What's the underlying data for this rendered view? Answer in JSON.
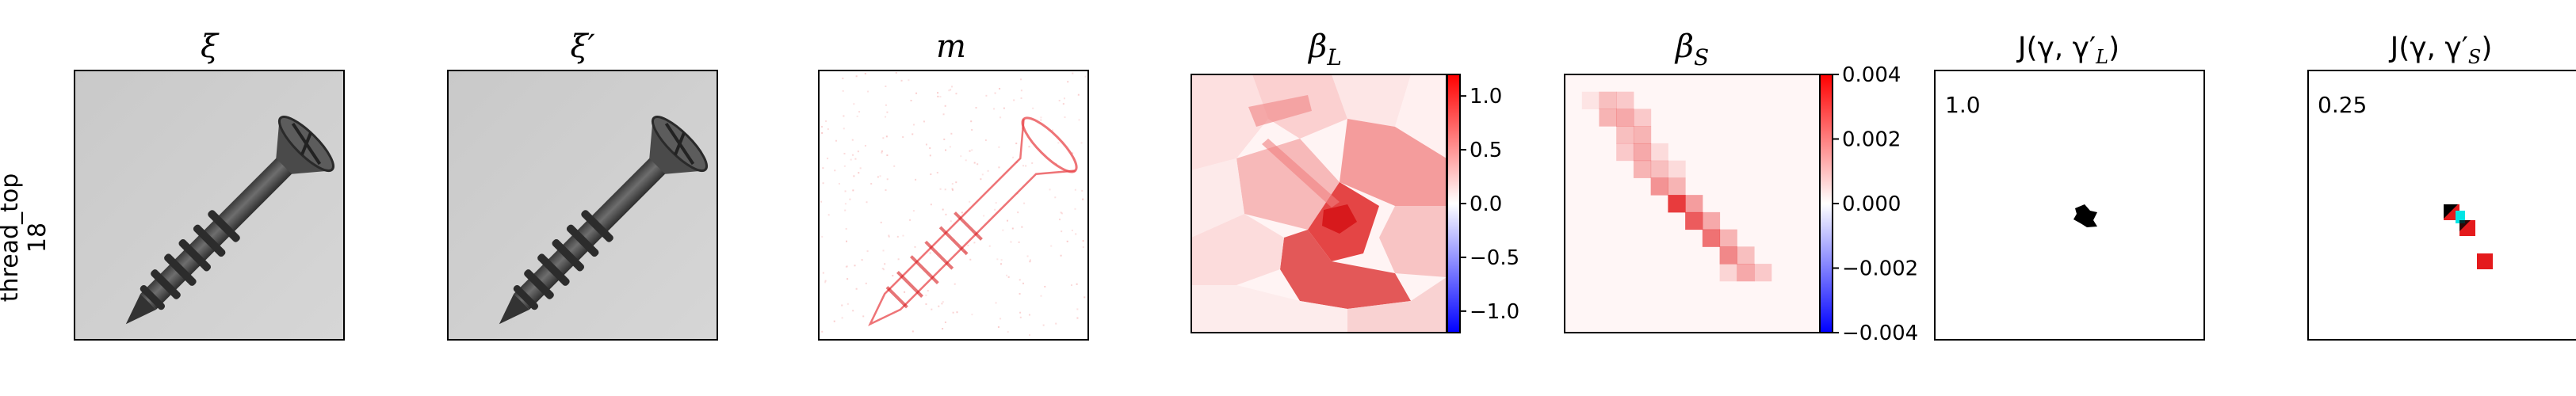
{
  "row_label": {
    "line1": "thread_top",
    "line2": "18"
  },
  "panels": [
    {
      "id": "xi",
      "title": "ξ",
      "type": "grayscale-image",
      "content": "screw"
    },
    {
      "id": "xi-prime",
      "title": "ξ′",
      "type": "grayscale-image",
      "content": "screw"
    },
    {
      "id": "m",
      "title": "m",
      "type": "heatmap",
      "content": "red difference map"
    },
    {
      "id": "beta-l",
      "title": "β",
      "title_sub": "L",
      "type": "heatmap",
      "content": "superpixel attribution"
    },
    {
      "id": "beta-s",
      "title": "β",
      "title_sub": "S",
      "type": "heatmap",
      "content": "grid attribution"
    },
    {
      "id": "j-l",
      "title": "J(γ, γ′",
      "title_sub": "L",
      "title_end": ")",
      "type": "mask",
      "annotation": "1.0"
    },
    {
      "id": "j-s",
      "title": "J(γ, γ′",
      "title_sub": "S",
      "title_end": ")",
      "type": "mask",
      "annotation": "0.25"
    }
  ],
  "colorbars": [
    {
      "panel": "beta-l",
      "ticks": [
        "1.0",
        "0.5",
        "0.0",
        "−0.5",
        "−1.0"
      ],
      "range": [
        -1.2,
        1.2
      ]
    },
    {
      "panel": "beta-s",
      "ticks": [
        "0.004",
        "0.002",
        "0.000",
        "−0.002",
        "−0.004"
      ],
      "range": [
        -0.004,
        0.004
      ]
    }
  ],
  "colors": {
    "positive": "#e41a1c",
    "negative": "#1f1fd6",
    "mask": "#000000",
    "overlap": "#00e5e5",
    "frame": "#000000"
  }
}
